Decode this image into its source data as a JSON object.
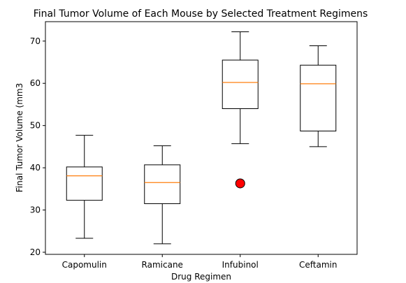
{
  "chart_data": {
    "type": "box",
    "title": "Final Tumor Volume of Each Mouse by Selected Treatment Regimens",
    "xlabel": "Drug Regimen",
    "ylabel": "Final Tumor Volume (mm3",
    "ylim": [
      19.5,
      74.6
    ],
    "yticks": [
      20,
      30,
      40,
      50,
      60,
      70
    ],
    "grid": false,
    "categories": [
      "Capomulin",
      "Ramicane",
      "Infubinol",
      "Ceftamin"
    ],
    "boxes": [
      {
        "name": "Capomulin",
        "whisker_low": 23.3,
        "q1": 32.3,
        "median": 38.1,
        "q3": 40.2,
        "whisker_high": 47.7,
        "outliers": []
      },
      {
        "name": "Ramicane",
        "whisker_low": 22.0,
        "q1": 31.5,
        "median": 36.5,
        "q3": 40.7,
        "whisker_high": 45.2,
        "outliers": []
      },
      {
        "name": "Infubinol",
        "whisker_low": 45.7,
        "q1": 54.0,
        "median": 60.2,
        "q3": 65.5,
        "whisker_high": 72.2,
        "outliers": [
          36.3
        ]
      },
      {
        "name": "Ceftamin",
        "whisker_low": 45.0,
        "q1": 48.7,
        "median": 59.9,
        "q3": 64.3,
        "whisker_high": 68.9,
        "outliers": []
      }
    ],
    "colors": {
      "box": "#000000",
      "median": "#ff7f0e",
      "outlier_fill": "#ff0000",
      "outlier_edge": "#000000"
    }
  }
}
